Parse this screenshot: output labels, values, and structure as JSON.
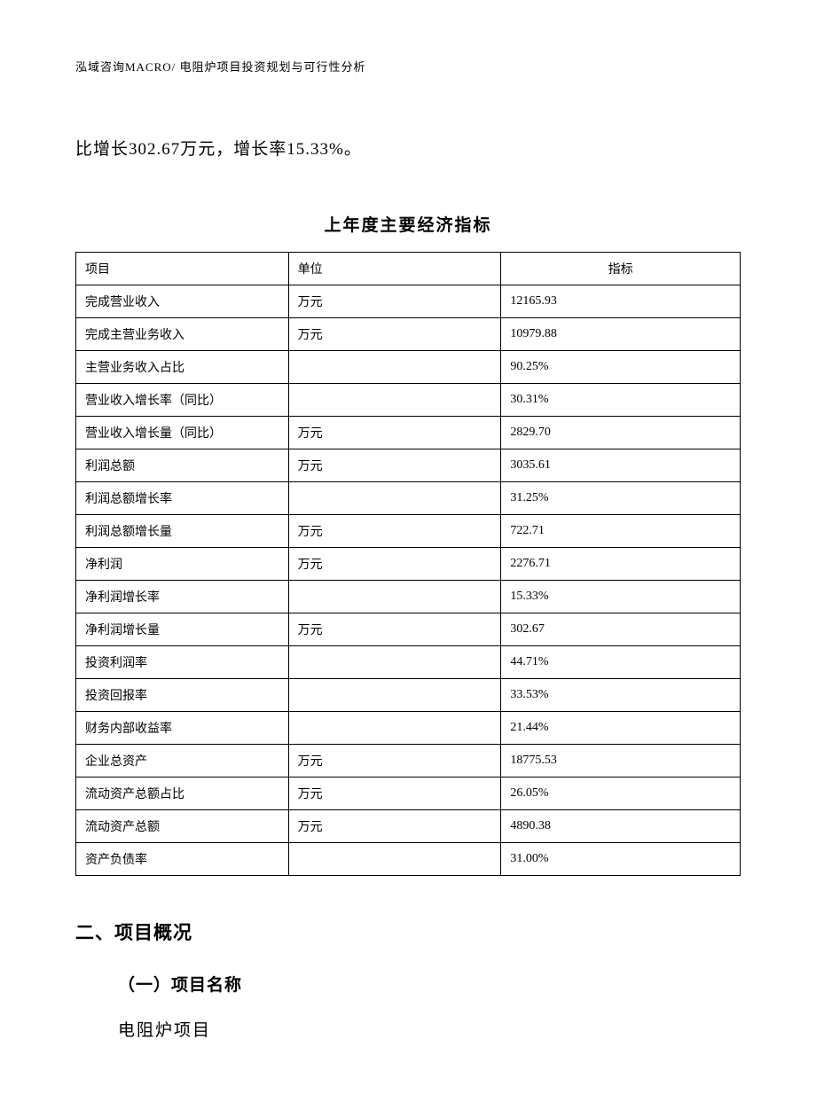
{
  "header": "泓域咨询MACRO/ 电阻炉项目投资规划与可行性分析",
  "intro": "比增长302.67万元，增长率15.33%。",
  "table": {
    "title": "上年度主要经济指标",
    "columns": [
      "项目",
      "单位",
      "指标"
    ],
    "rows": [
      [
        "完成营业收入",
        "万元",
        "12165.93"
      ],
      [
        "完成主营业务收入",
        "万元",
        "10979.88"
      ],
      [
        "主营业务收入占比",
        "",
        "90.25%"
      ],
      [
        "营业收入增长率（同比）",
        "",
        "30.31%"
      ],
      [
        "营业收入增长量（同比）",
        "万元",
        "2829.70"
      ],
      [
        "利润总额",
        "万元",
        "3035.61"
      ],
      [
        "利润总额增长率",
        "",
        "31.25%"
      ],
      [
        "利润总额增长量",
        "万元",
        "722.71"
      ],
      [
        "净利润",
        "万元",
        "2276.71"
      ],
      [
        "净利润增长率",
        "",
        "15.33%"
      ],
      [
        "净利润增长量",
        "万元",
        "302.67"
      ],
      [
        "投资利润率",
        "",
        "44.71%"
      ],
      [
        "投资回报率",
        "",
        "33.53%"
      ],
      [
        "财务内部收益率",
        "",
        "21.44%"
      ],
      [
        "企业总资产",
        "万元",
        "18775.53"
      ],
      [
        "流动资产总额占比",
        "万元",
        "26.05%"
      ],
      [
        "流动资产总额",
        "万元",
        "4890.38"
      ],
      [
        "资产负债率",
        "",
        "31.00%"
      ]
    ]
  },
  "section2": {
    "heading": "二、项目概况",
    "sub1": {
      "heading": "（一）项目名称",
      "text": "电阻炉项目"
    }
  }
}
